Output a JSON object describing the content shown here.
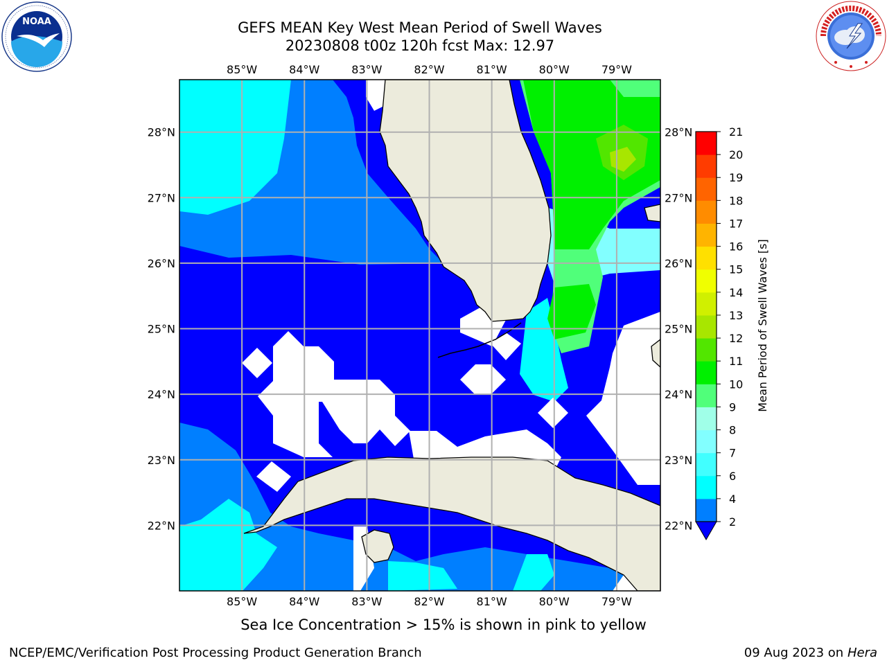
{
  "title": {
    "line1": "GEFS MEAN Key West Mean Period of Swell Waves",
    "line2": "20230808 t00z 120h fcst   Max: 12.97"
  },
  "map": {
    "lon_labels": [
      "85°W",
      "84°W",
      "83°W",
      "82°W",
      "81°W",
      "80°W",
      "79°W"
    ],
    "lat_labels": [
      "28°N",
      "27°N",
      "26°N",
      "25°N",
      "24°N",
      "23°N",
      "22°N"
    ],
    "lon_range": [
      -86.0,
      -78.3
    ],
    "lat_range": [
      21.0,
      28.8
    ],
    "land_color": "#ecebdc",
    "grid_color": "#b0b0b0"
  },
  "colorbar": {
    "label": "Mean Period of Swell Waves [s]",
    "levels": [
      "2",
      "4",
      "6",
      "7",
      "8",
      "9",
      "10",
      "11",
      "12",
      "13",
      "14",
      "15",
      "16",
      "17",
      "18",
      "19",
      "20",
      "21"
    ],
    "colors": [
      "#0000ff",
      "#007fff",
      "#00ffff",
      "#41ffff",
      "#82ffff",
      "#a0ffe8",
      "#50ff7a",
      "#00f000",
      "#52e600",
      "#a8e600",
      "#d0f000",
      "#f0ff00",
      "#ffe000",
      "#ffb400",
      "#ff8c00",
      "#ff6400",
      "#ff3c00",
      "#ff0000"
    ]
  },
  "caption": "Sea Ice Concentration > 15% is shown in pink to yellow",
  "footer": {
    "left": "NCEP/EMC/Verification Post Processing Product Generation Branch",
    "date": "09 Aug 2023 on",
    "host": "Hera"
  },
  "logos": {
    "left": "noaa-logo",
    "right": "nws-logo"
  }
}
